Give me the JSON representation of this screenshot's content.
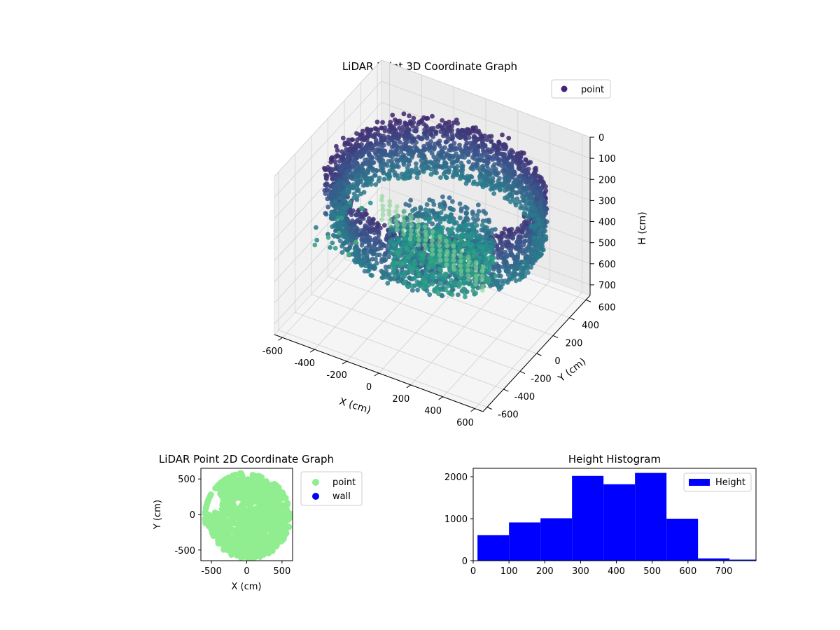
{
  "chart_data": [
    {
      "type": "scatter3d",
      "title": "LiDAR Point 3D Coordinate Graph",
      "xlabel": "X (cm)",
      "ylabel": "Y (cm)",
      "zlabel": "H (cm)",
      "xlim": [
        -650,
        650
      ],
      "ylim": [
        -650,
        650
      ],
      "zlim": [
        750,
        0
      ],
      "xticks": [
        "-600",
        "-400",
        "-200",
        "0",
        "200",
        "400",
        "600"
      ],
      "yticks": [
        "-600",
        "-400",
        "-200",
        "0",
        "200",
        "400",
        "600"
      ],
      "zticks": [
        "0",
        "100",
        "200",
        "300",
        "400",
        "500",
        "600",
        "700"
      ],
      "legend": {
        "position": "top-right",
        "label": "point",
        "color": "#45237a"
      },
      "grid": true,
      "colormap": "viridis",
      "description_series": [
        {
          "name": "point",
          "shape": "ring",
          "radius_cm": 600,
          "height_range_cm": [
            120,
            380
          ]
        },
        {
          "name": "point",
          "shape": "inner-cluster",
          "radius_cm": 250,
          "height_range_cm": [
            300,
            500
          ]
        },
        {
          "name": "point",
          "shape": "columns",
          "height_range_cm": [
            620,
            780
          ]
        }
      ]
    },
    {
      "type": "scatter",
      "title": "LiDAR Point 2D Coordinate Graph",
      "xlabel": "X (cm)",
      "ylabel": "Y (cm)",
      "xlim": [
        -650,
        650
      ],
      "ylim": [
        -650,
        650
      ],
      "xticks": [
        "-500",
        "0",
        "500"
      ],
      "yticks": [
        "-500",
        "0",
        "500"
      ],
      "legend": {
        "position": "outside-right",
        "entries": [
          {
            "label": "point",
            "color": "#90ee90"
          },
          {
            "label": "wall",
            "color": "#0000ff"
          }
        ]
      },
      "disc": {
        "center": [
          30,
          -30
        ],
        "radius": 590
      }
    },
    {
      "type": "bar",
      "title": "Height Histogram",
      "xlabel": "",
      "ylabel": "",
      "xlim": [
        0,
        790
      ],
      "ylim": [
        0,
        2200
      ],
      "xticks": [
        "0",
        "100",
        "200",
        "300",
        "400",
        "500",
        "600",
        "700"
      ],
      "yticks": [
        "0",
        "1000",
        "2000"
      ],
      "legend": {
        "position": "top-right",
        "label": "Height",
        "color": "#0000ff"
      },
      "bins": [
        {
          "x0": 12,
          "x1": 100,
          "count": 610
        },
        {
          "x0": 100,
          "x1": 188,
          "count": 910
        },
        {
          "x0": 188,
          "x1": 276,
          "count": 1010
        },
        {
          "x0": 276,
          "x1": 364,
          "count": 2020
        },
        {
          "x0": 364,
          "x1": 452,
          "count": 1820
        },
        {
          "x0": 452,
          "x1": 540,
          "count": 2090
        },
        {
          "x0": 540,
          "x1": 628,
          "count": 1000
        },
        {
          "x0": 628,
          "x1": 716,
          "count": 55
        },
        {
          "x0": 716,
          "x1": 790,
          "count": 25
        }
      ]
    }
  ]
}
